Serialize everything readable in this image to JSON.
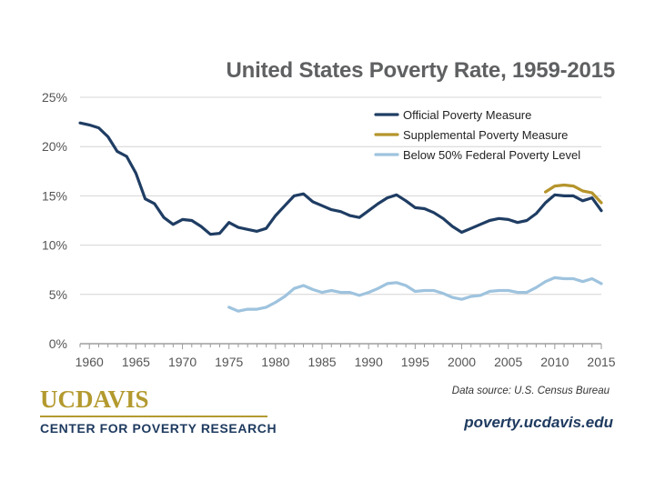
{
  "chart_data": {
    "type": "line",
    "title": "United States Poverty Rate, 1959-2015",
    "xlabel": "",
    "ylabel": "",
    "xlim": [
      1959,
      2015
    ],
    "ylim": [
      0,
      25
    ],
    "x_ticks": [
      1960,
      1965,
      1970,
      1975,
      1980,
      1985,
      1990,
      1995,
      2000,
      2005,
      2010,
      2015
    ],
    "y_ticks": [
      0,
      5,
      10,
      15,
      20,
      25
    ],
    "y_tick_labels": [
      "0%",
      "5%",
      "10%",
      "15%",
      "20%",
      "25%"
    ],
    "grid": true,
    "legend_position": "top-right",
    "series": [
      {
        "name": "Official Poverty Measure",
        "color": "#1f3d63",
        "x": [
          1959,
          1960,
          1961,
          1962,
          1963,
          1964,
          1965,
          1966,
          1967,
          1968,
          1969,
          1970,
          1971,
          1972,
          1973,
          1974,
          1975,
          1976,
          1977,
          1978,
          1979,
          1980,
          1981,
          1982,
          1983,
          1984,
          1985,
          1986,
          1987,
          1988,
          1989,
          1990,
          1991,
          1992,
          1993,
          1994,
          1995,
          1996,
          1997,
          1998,
          1999,
          2000,
          2001,
          2002,
          2003,
          2004,
          2005,
          2006,
          2007,
          2008,
          2009,
          2010,
          2011,
          2012,
          2013,
          2014,
          2015
        ],
        "values": [
          22.4,
          22.2,
          21.9,
          21.0,
          19.5,
          19.0,
          17.3,
          14.7,
          14.2,
          12.8,
          12.1,
          12.6,
          12.5,
          11.9,
          11.1,
          11.2,
          12.3,
          11.8,
          11.6,
          11.4,
          11.7,
          13.0,
          14.0,
          15.0,
          15.2,
          14.4,
          14.0,
          13.6,
          13.4,
          13.0,
          12.8,
          13.5,
          14.2,
          14.8,
          15.1,
          14.5,
          13.8,
          13.7,
          13.3,
          12.7,
          11.9,
          11.3,
          11.7,
          12.1,
          12.5,
          12.7,
          12.6,
          12.3,
          12.5,
          13.2,
          14.3,
          15.1,
          15.0,
          15.0,
          14.5,
          14.8,
          13.5
        ]
      },
      {
        "name": "Supplemental Poverty Measure",
        "color": "#b5942b",
        "x": [
          2009,
          2010,
          2011,
          2012,
          2013,
          2014,
          2015
        ],
        "values": [
          15.4,
          16.0,
          16.1,
          16.0,
          15.5,
          15.3,
          14.3
        ]
      },
      {
        "name": "Below 50% Federal Poverty Level",
        "color": "#9ec3de",
        "x": [
          1975,
          1976,
          1977,
          1978,
          1979,
          1980,
          1981,
          1982,
          1983,
          1984,
          1985,
          1986,
          1987,
          1988,
          1989,
          1990,
          1991,
          1992,
          1993,
          1994,
          1995,
          1996,
          1997,
          1998,
          1999,
          2000,
          2001,
          2002,
          2003,
          2004,
          2005,
          2006,
          2007,
          2008,
          2009,
          2010,
          2011,
          2012,
          2013,
          2014,
          2015
        ],
        "values": [
          3.7,
          3.3,
          3.5,
          3.5,
          3.7,
          4.2,
          4.8,
          5.6,
          5.9,
          5.5,
          5.2,
          5.4,
          5.2,
          5.2,
          4.9,
          5.2,
          5.6,
          6.1,
          6.2,
          5.9,
          5.3,
          5.4,
          5.4,
          5.1,
          4.7,
          4.5,
          4.8,
          4.9,
          5.3,
          5.4,
          5.4,
          5.2,
          5.2,
          5.7,
          6.3,
          6.7,
          6.6,
          6.6,
          6.3,
          6.6,
          6.1
        ]
      }
    ]
  },
  "branding": {
    "logo_uc": "UCDAVIS",
    "logo_center": "CENTER FOR POVERTY RESEARCH",
    "source": "Data source: U.S. Census Bureau",
    "website": "poverty.ucdavis.edu"
  }
}
